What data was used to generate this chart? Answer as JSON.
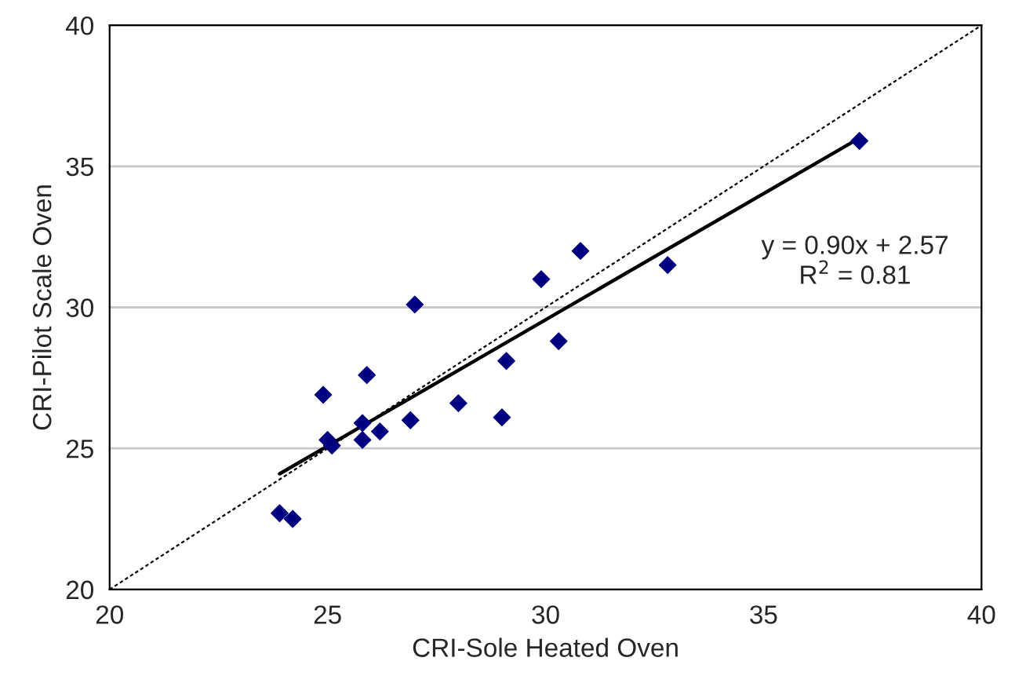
{
  "chart_data": {
    "type": "scatter",
    "xlabel": "CRI-Sole Heated Oven",
    "ylabel": "CRI-Pilot Scale Oven",
    "xlim": [
      20,
      40
    ],
    "ylim": [
      20,
      40
    ],
    "xticks": [
      20,
      25,
      30,
      35,
      40
    ],
    "yticks": [
      20,
      25,
      30,
      35,
      40
    ],
    "grid": "y",
    "legend": false,
    "series": [
      {
        "color": "#000080",
        "marker": "diamond",
        "x": [
          23.9,
          24.2,
          24.9,
          25.0,
          25.1,
          25.8,
          25.8,
          25.9,
          26.2,
          26.9,
          27.0,
          28.0,
          29.0,
          29.1,
          29.9,
          30.3,
          30.8,
          32.8,
          37.2
        ],
        "values": [
          22.7,
          22.5,
          26.9,
          25.3,
          25.1,
          25.9,
          25.3,
          27.6,
          25.6,
          26.0,
          30.1,
          26.6,
          26.1,
          28.1,
          31.0,
          28.8,
          32.0,
          31.5,
          35.9
        ]
      },
      {
        "type": "line",
        "color": "#000000",
        "line_style": "solid",
        "x": [
          23.9,
          37.2
        ],
        "values": [
          24.1,
          36.0
        ]
      },
      {
        "type": "line",
        "color": "#000000",
        "line_style": "dotted",
        "x": [
          20,
          40
        ],
        "values": [
          20,
          40
        ]
      }
    ],
    "annotations": [
      "y = 0.90x + 2.57\nR$^{2}$ = 0.81"
    ]
  }
}
